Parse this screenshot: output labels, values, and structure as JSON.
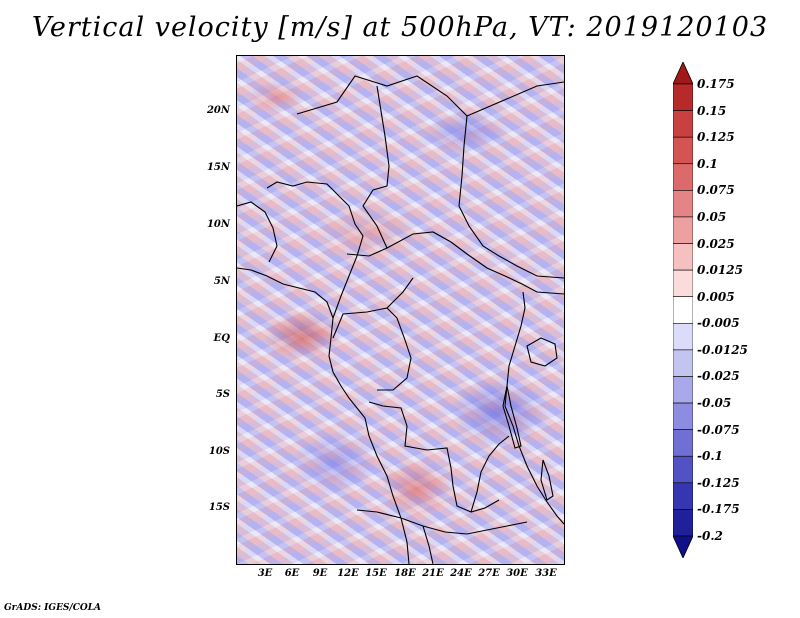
{
  "title": "Vertical velocity [m/s] at 500hPa, VT: 2019120103",
  "y_ticks": [
    "20N",
    "15N",
    "10N",
    "5N",
    "EQ",
    "5S",
    "10S",
    "15S"
  ],
  "x_ticks": [
    "3E",
    "6E",
    "9E",
    "12E",
    "15E",
    "18E",
    "21E",
    "24E",
    "27E",
    "30E",
    "33E"
  ],
  "colorbar": {
    "labels": [
      "0.175",
      "0.15",
      "0.125",
      "0.1",
      "0.075",
      "0.05",
      "0.025",
      "0.0125",
      "0.005",
      "-0.005",
      "-0.0125",
      "-0.025",
      "-0.05",
      "-0.075",
      "-0.1",
      "-0.125",
      "-0.175",
      "-0.2"
    ],
    "colors": [
      "#a01818",
      "#b82a2a",
      "#c84040",
      "#d45454",
      "#dc6a6a",
      "#e48484",
      "#eca0a0",
      "#f4c0c0",
      "#fadcdc",
      "#ffffff",
      "#dcdcf8",
      "#c4c4f0",
      "#a8a8ea",
      "#8c8ce0",
      "#7070d4",
      "#5252c4",
      "#3636b0",
      "#20209a",
      "#10108a"
    ]
  },
  "footer": "GrADS: IGES/COLA"
}
